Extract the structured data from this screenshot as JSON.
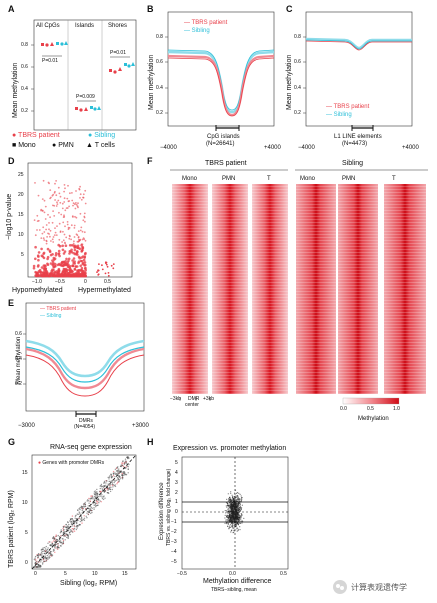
{
  "panels": {
    "A": {
      "letter": "A",
      "ylabel": "Mean methylation",
      "yticks": [
        "0.8",
        "0.6",
        "0.4",
        "0.2"
      ],
      "groups": [
        "All CpGs",
        "Islands",
        "Shores"
      ],
      "pvalues": [
        "P=0.01",
        "P=0.009",
        "P=0.01"
      ],
      "legend": {
        "tbrs": "TBRS patient",
        "sibling": "Sibling",
        "mono": "Mono",
        "pmn": "PMN",
        "tcells": "T cells"
      }
    },
    "B": {
      "letter": "B",
      "ylabel": "Mean methylation",
      "yticks": [
        "0.8",
        "0.6",
        "0.4",
        "0.2"
      ],
      "legend": [
        "TBRS patient",
        "Sibling"
      ],
      "xlabel": "CpG islands",
      "xlabel2": "(N=26641)",
      "xmin": "−4000",
      "xmax": "+4000"
    },
    "C": {
      "letter": "C",
      "ylabel": "Mean methylation",
      "yticks": [
        "0.8",
        "0.6",
        "0.4",
        "0.2"
      ],
      "legend": [
        "TBRS patient",
        "Sibling"
      ],
      "xlabel": "L1 LINE elements",
      "xlabel2": "(N=4473)",
      "xmin": "−4000",
      "xmax": "+4000"
    },
    "D": {
      "letter": "D",
      "ylabel": "−log10 p-value",
      "yticks": [
        "25",
        "20",
        "15",
        "10",
        "5"
      ],
      "xticks": [
        "−1.0",
        "−0.5",
        "0",
        "0.5"
      ],
      "left": "Hypomethylated",
      "right": "Hypermethylated"
    },
    "E": {
      "letter": "E",
      "ylabel": "Mean methylation",
      "yticks": [
        "0.6",
        "0.4",
        "0.2"
      ],
      "legend": [
        "TBRS patient",
        "Sibling"
      ],
      "xlabel": "DMRs",
      "xlabel2": "(N=4054)",
      "xmin": "−3000",
      "xmax": "+3000"
    },
    "F": {
      "letter": "F",
      "group1": "TBRS patient",
      "group2": "Sibling",
      "columns": [
        "Mono",
        "PMN",
        "T",
        "Mono",
        "PMN",
        "T"
      ],
      "xl1": "−3kb",
      "xl2": "DMR",
      "xl2b": "center",
      "xl3": "+3kb",
      "scale_min": "0.0",
      "scale_mid": "0.5",
      "scale_max": "1.0",
      "scale_label": "Methylation"
    },
    "G": {
      "letter": "G",
      "title": "RNA-seq gene expression",
      "legend": "Genes with promoter DMRs",
      "ylabel": "TBRS patient (log₂ RPM)",
      "xlabel": "Sibling (log₂ RPM)",
      "xticks": [
        "0",
        "5",
        "10",
        "15"
      ],
      "yticks": [
        "15",
        "10",
        "5",
        "0"
      ]
    },
    "H": {
      "letter": "H",
      "title": "Expression vs. promoter methylation",
      "ylabel": "Expression difference",
      "ylabel2": "TBRS vs. sibling (log₂ fold change)",
      "xlabel": "Methylation difference",
      "xlabel2": "TBRS−sibling, mean",
      "xticks": [
        "−0.5",
        "0.0",
        "0.5"
      ],
      "yticks": [
        "5",
        "4",
        "3",
        "2",
        "1",
        "0",
        "−1",
        "−2",
        "−3",
        "−4",
        "−5"
      ]
    }
  },
  "watermark": "计算表观遗传学",
  "colors": {
    "red": "#e8404a",
    "pink": "#f08a93",
    "cyan": "#2bbfd8",
    "light_cyan": "#8fdcea"
  }
}
